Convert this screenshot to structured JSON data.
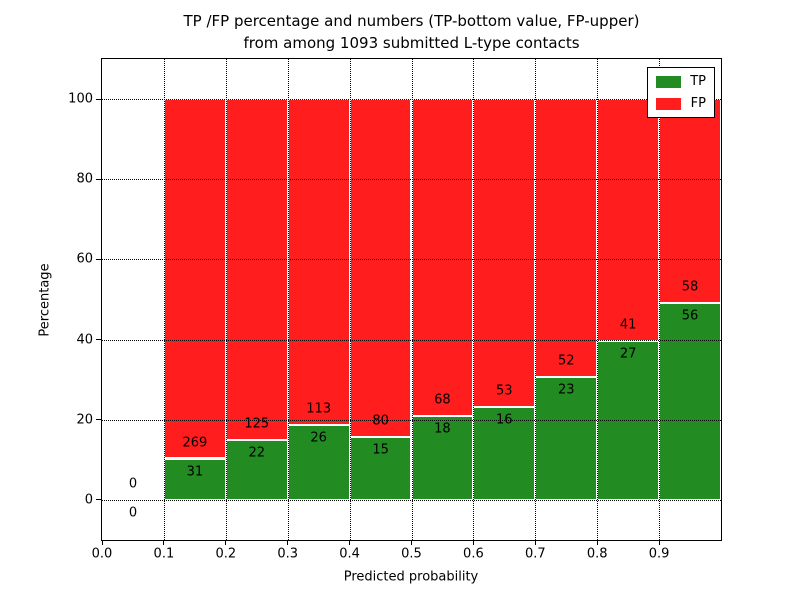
{
  "figure": {
    "title_line1": "TP /FP percentage and numbers (TP-bottom value, FP-upper)",
    "title_line2": "from among 1093 submitted L-type contacts"
  },
  "chart_data": {
    "type": "bar",
    "stacked": true,
    "normalized": "each bar stacks TP%+FP% to 100, labels show raw counts (FP above, TP below)",
    "title": "TP /FP percentage and numbers (TP-bottom value, FP-upper) from among 1093 submitted L-type contacts",
    "xlabel": "Predicted probability",
    "ylabel": "Percentage",
    "total_contacts": 1093,
    "bins": [
      {
        "x_start": 0.0,
        "x_end": 0.1,
        "tp": 0,
        "fp": 0,
        "tp_percent": null,
        "fp_percent": null
      },
      {
        "x_start": 0.1,
        "x_end": 0.2,
        "tp": 31,
        "fp": 269,
        "tp_percent": 10.3,
        "fp_percent": 89.7
      },
      {
        "x_start": 0.2,
        "x_end": 0.3,
        "tp": 22,
        "fp": 125,
        "tp_percent": 15.0,
        "fp_percent": 85.0
      },
      {
        "x_start": 0.3,
        "x_end": 0.4,
        "tp": 26,
        "fp": 113,
        "tp_percent": 18.7,
        "fp_percent": 81.3
      },
      {
        "x_start": 0.4,
        "x_end": 0.5,
        "tp": 15,
        "fp": 80,
        "tp_percent": 15.8,
        "fp_percent": 84.2
      },
      {
        "x_start": 0.5,
        "x_end": 0.6,
        "tp": 18,
        "fp": 68,
        "tp_percent": 20.9,
        "fp_percent": 79.1
      },
      {
        "x_start": 0.6,
        "x_end": 0.7,
        "tp": 16,
        "fp": 53,
        "tp_percent": 23.2,
        "fp_percent": 76.8
      },
      {
        "x_start": 0.7,
        "x_end": 0.8,
        "tp": 23,
        "fp": 52,
        "tp_percent": 30.7,
        "fp_percent": 69.3
      },
      {
        "x_start": 0.8,
        "x_end": 0.9,
        "tp": 27,
        "fp": 41,
        "tp_percent": 39.7,
        "fp_percent": 60.3
      },
      {
        "x_start": 0.9,
        "x_end": 1.0,
        "tp": 56,
        "fp": 58,
        "tp_percent": 49.1,
        "fp_percent": 50.9
      }
    ],
    "xticks": [
      "0.0",
      "0.1",
      "0.2",
      "0.3",
      "0.4",
      "0.5",
      "0.6",
      "0.7",
      "0.8",
      "0.9"
    ],
    "yticks": [
      "0",
      "20",
      "40",
      "60",
      "80",
      "100"
    ],
    "xlim": [
      0.0,
      1.0
    ],
    "ylim": [
      -10,
      110
    ],
    "grid": "dotted black, horizontal at y ticks and vertical at x ticks, drawn over bars",
    "legend_position": "upper right",
    "legend_entries": [
      "TP",
      "FP"
    ],
    "colors": {
      "tp": "#228b22",
      "fp": "#ff1d1d",
      "bar_edge": "#ffffff",
      "grid": "#000000"
    }
  }
}
